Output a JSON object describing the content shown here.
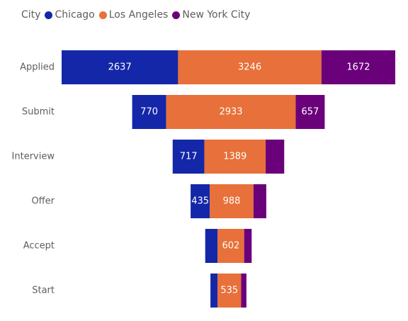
{
  "legend": {
    "title": "City",
    "items": [
      {
        "name": "Chicago",
        "color": "#1427a8"
      },
      {
        "name": "Los Angeles",
        "color": "#e8703a"
      },
      {
        "name": "New York City",
        "color": "#6b007b"
      }
    ]
  },
  "chart_data": {
    "type": "bar",
    "subtype": "stacked-funnel",
    "categories": [
      "Applied",
      "Submit",
      "Interview",
      "Offer",
      "Accept",
      "Start"
    ],
    "series": [
      {
        "name": "Chicago",
        "color": "#1427a8",
        "values": [
          2637,
          770,
          717,
          435,
          280,
          160
        ]
      },
      {
        "name": "Los Angeles",
        "color": "#e8703a",
        "values": [
          3246,
          2933,
          1389,
          988,
          602,
          535
        ]
      },
      {
        "name": "New York City",
        "color": "#6b007b",
        "values": [
          1672,
          657,
          420,
          290,
          170,
          120
        ]
      }
    ],
    "data_labels": [
      [
        "2637",
        "3246",
        "1672"
      ],
      [
        "770",
        "2933",
        "657"
      ],
      [
        "717",
        "1389",
        ""
      ],
      [
        "435",
        "988",
        ""
      ],
      [
        "",
        "602",
        ""
      ],
      [
        "",
        "535",
        ""
      ]
    ],
    "legend_position": "top-left",
    "grid": false
  }
}
